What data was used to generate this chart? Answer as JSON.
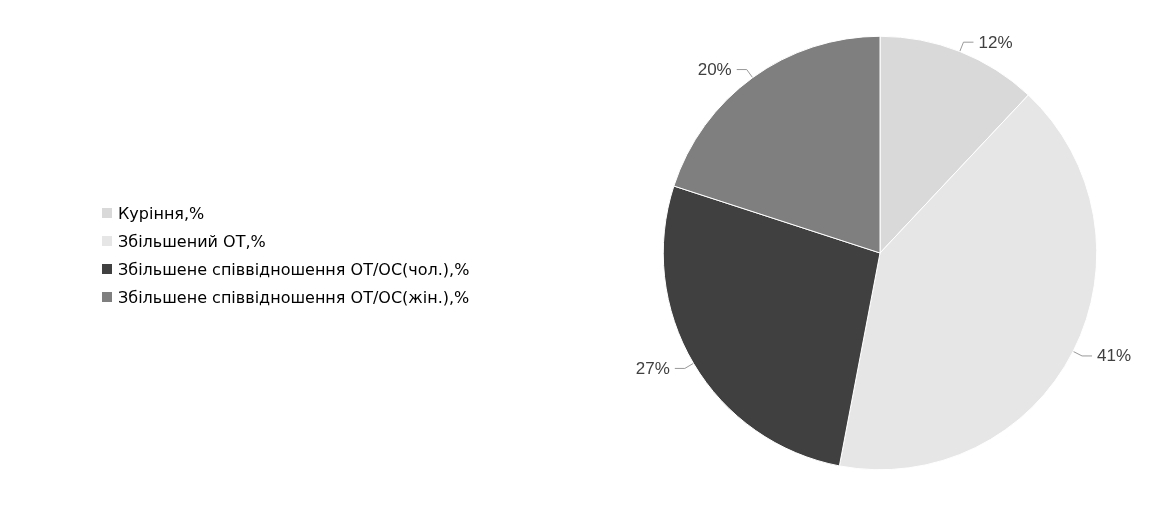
{
  "chart_data": {
    "type": "pie",
    "categories": [
      "Куріння,%",
      "Збільшений ОТ,%",
      "Збільшене співвідношення ОТ/ОС(чол.),%",
      "Збільшене співвідношення ОТ/ОС(жін.),%"
    ],
    "values": [
      12,
      41,
      27,
      20
    ],
    "colors": [
      "#d9d9d9",
      "#e6e6e6",
      "#404040",
      "#7f7f7f"
    ],
    "value_labels": [
      "12%",
      "41%",
      "27%",
      "20%"
    ],
    "legend": "left"
  }
}
